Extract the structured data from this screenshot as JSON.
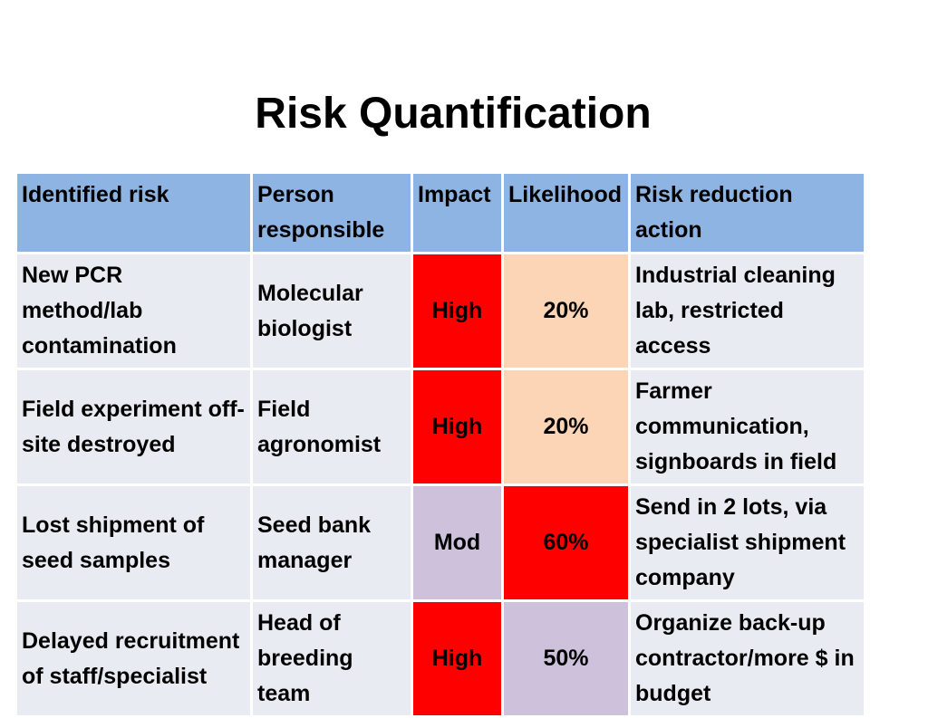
{
  "title": "Risk Quantification",
  "colors": {
    "header_bg": "#8eb4e3",
    "cell_bg": "#e8ebf1",
    "high": "#ff0000",
    "low_likelihood": "#fbd5b6",
    "moderate": "#cdc1db"
  },
  "table": {
    "headers": [
      "Identified risk",
      "Person responsible",
      "Impact",
      "Likelihood",
      "Risk reduction action"
    ],
    "rows": [
      {
        "risk": "New PCR method/lab contamination",
        "person": "Molecular biologist",
        "impact": "High",
        "likelihood": "20%",
        "action": "Industrial cleaning lab, restricted access"
      },
      {
        "risk": "Field experiment off-site destroyed",
        "person": "Field agronomist",
        "impact": "High",
        "likelihood": "20%",
        "action": "Farmer communication, signboards in field"
      },
      {
        "risk": "Lost shipment of seed samples",
        "person": "Seed bank manager",
        "impact": "Mod",
        "likelihood": "60%",
        "action": "Send in 2 lots, via specialist shipment company"
      },
      {
        "risk": "Delayed recruitment of staff/specialist",
        "person": "Head of breeding team",
        "impact": "High",
        "likelihood": "50%",
        "action": "Organize back-up contractor/more $ in budget"
      }
    ]
  }
}
